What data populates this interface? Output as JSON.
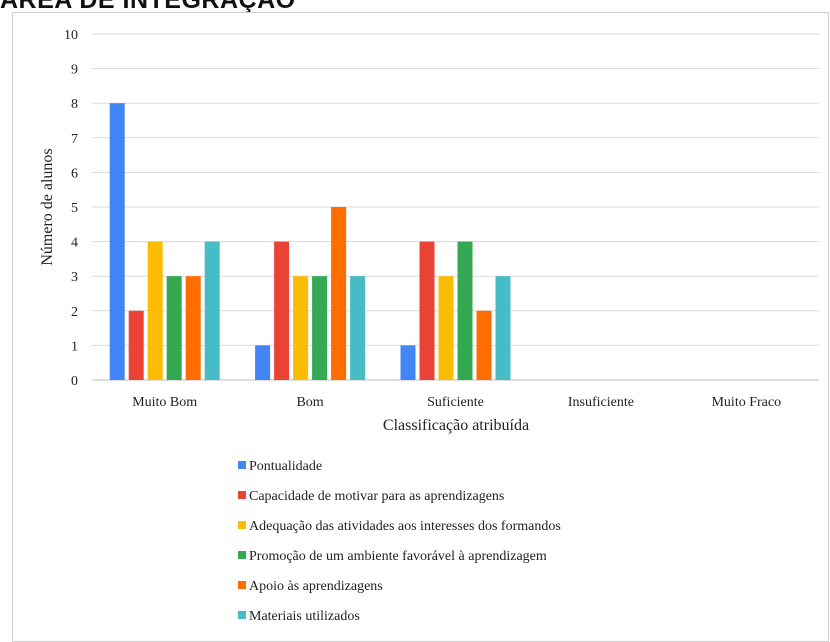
{
  "header": {
    "title": "ÁREA DE INTEGRAÇÃO"
  },
  "chart_data": {
    "type": "bar",
    "title": "",
    "xlabel": "Classificação atribuída",
    "ylabel": "Número de alunos",
    "ylim": [
      0,
      10
    ],
    "yticks": [
      0,
      1,
      2,
      3,
      4,
      5,
      6,
      7,
      8,
      9,
      10
    ],
    "grid": true,
    "legend_position": "bottom",
    "categories": [
      "Muito Bom",
      "Bom",
      "Suficiente",
      "Insuficiente",
      "Muito Fraco"
    ],
    "series": [
      {
        "name": "Pontualidade",
        "color": "#4285f4",
        "values": [
          8,
          1,
          1,
          0,
          0
        ]
      },
      {
        "name": "Capacidade de motivar para as aprendizagens",
        "color": "#ea4335",
        "values": [
          2,
          4,
          4,
          0,
          0
        ]
      },
      {
        "name": "Adequação das atividades aos interesses dos formandos",
        "color": "#fbbc04",
        "values": [
          4,
          3,
          3,
          0,
          0
        ]
      },
      {
        "name": "Promoção de um ambiente favorável à aprendizagem",
        "color": "#34a853",
        "values": [
          3,
          3,
          4,
          0,
          0
        ]
      },
      {
        "name": "Apoio às aprendizagens",
        "color": "#ff6d01",
        "values": [
          3,
          5,
          2,
          0,
          0
        ]
      },
      {
        "name": "Materiais utilizados",
        "color": "#46bdc6",
        "values": [
          4,
          3,
          3,
          0,
          0
        ]
      }
    ]
  }
}
